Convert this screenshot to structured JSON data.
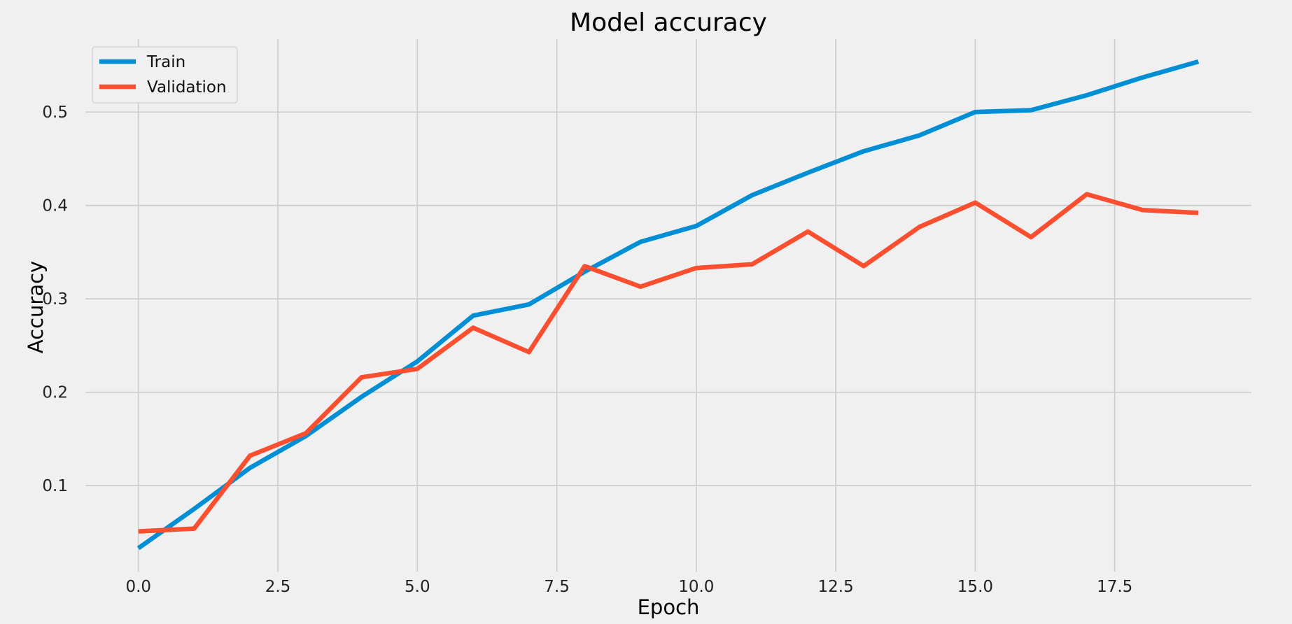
{
  "chart_data": {
    "type": "line",
    "title": "Model accuracy",
    "xlabel": "Epoch",
    "ylabel": "Accuracy",
    "xlim": [
      -0.95,
      19.95
    ],
    "ylim": [
      0.008,
      0.578
    ],
    "xticks": [
      0.0,
      2.5,
      5.0,
      7.5,
      10.0,
      12.5,
      15.0,
      17.5
    ],
    "xtick_labels": [
      "0.0",
      "2.5",
      "5.0",
      "7.5",
      "10.0",
      "12.5",
      "15.0",
      "17.5"
    ],
    "yticks": [
      0.1,
      0.2,
      0.3,
      0.4,
      0.5
    ],
    "ytick_labels": [
      "0.1",
      "0.2",
      "0.3",
      "0.4",
      "0.5"
    ],
    "grid": true,
    "legend_position": "top-left",
    "x": [
      0,
      1,
      2,
      3,
      4,
      5,
      6,
      7,
      8,
      9,
      10,
      11,
      12,
      13,
      14,
      15,
      16,
      17,
      18,
      19
    ],
    "series": [
      {
        "name": "Train",
        "color": "#008fd5",
        "values": [
          0.033,
          0.075,
          0.119,
          0.153,
          0.195,
          0.233,
          0.282,
          0.294,
          0.329,
          0.361,
          0.378,
          0.411,
          0.435,
          0.458,
          0.475,
          0.5,
          0.502,
          0.518,
          0.537,
          0.554
        ]
      },
      {
        "name": "Validation",
        "color": "#fc4f30",
        "values": [
          0.051,
          0.054,
          0.132,
          0.156,
          0.216,
          0.225,
          0.269,
          0.243,
          0.335,
          0.313,
          0.333,
          0.337,
          0.372,
          0.335,
          0.377,
          0.403,
          0.366,
          0.412,
          0.395,
          0.392
        ]
      }
    ]
  }
}
